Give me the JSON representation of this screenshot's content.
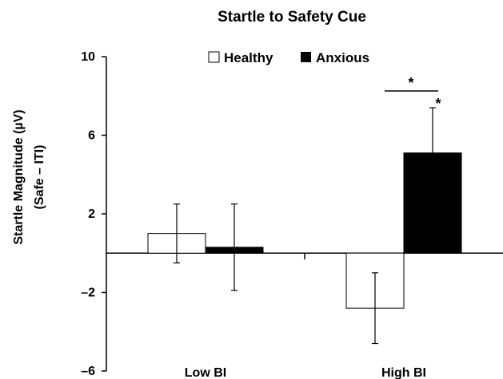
{
  "chart_data": {
    "type": "bar",
    "title": "Startle to Safety Cue",
    "ylabel_line1": "Startle Magnitude (µV)",
    "ylabel_line2": "(Safe – ITI)",
    "xlabel": "",
    "ylim": [
      -6,
      10
    ],
    "yticks": [
      10,
      6,
      2,
      -2,
      -6
    ],
    "ytick_labels": [
      "10",
      "6",
      "2",
      "–2",
      "–6"
    ],
    "categories": [
      "Low BI",
      "High BI"
    ],
    "series": [
      {
        "name": "Healthy",
        "values": [
          1.0,
          -2.8
        ],
        "errors": [
          1.5,
          1.8
        ],
        "fill": "#ffffff"
      },
      {
        "name": "Anxious",
        "values": [
          0.3,
          5.1
        ],
        "errors": [
          2.2,
          2.3
        ],
        "fill": "#000000"
      }
    ],
    "legend": {
      "position": "top-center"
    },
    "annotations": [
      {
        "text": "*",
        "kind": "between-groups",
        "category": "High BI"
      },
      {
        "text": "*",
        "kind": "above-bar",
        "category": "High BI",
        "series": "Anxious"
      }
    ]
  }
}
